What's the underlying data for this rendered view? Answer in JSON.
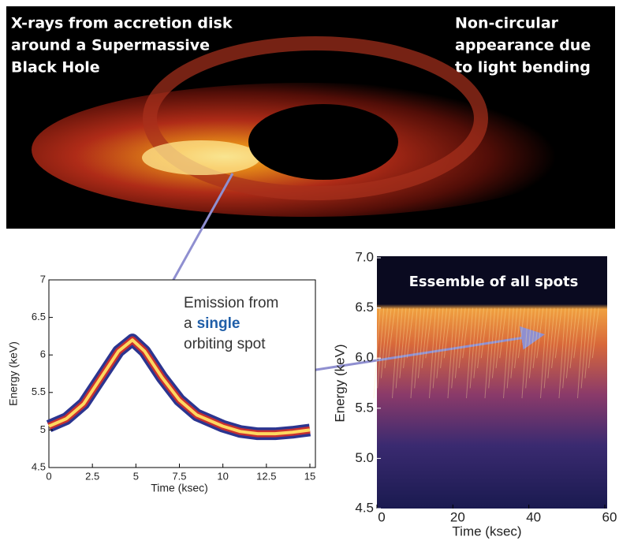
{
  "image": {
    "caption_left": [
      "X-rays from accretion disk",
      "around a Supermassive",
      "Black Hole"
    ],
    "caption_right": [
      "Non-circular",
      "appearance due",
      "to light bending"
    ]
  },
  "chart_data": [
    {
      "type": "line",
      "xlabel": "Time (ksec)",
      "ylabel": "Energy (keV)",
      "annotation": [
        "Emission from",
        "a",
        "single",
        "orbiting spot"
      ],
      "x": [
        0,
        1,
        2,
        3,
        4,
        4.8,
        5.5,
        6.5,
        7.5,
        8.5,
        10,
        11,
        12,
        13,
        14,
        15
      ],
      "series": [
        {
          "name": "orbiting spot",
          "color": "#2b3590",
          "values": [
            5.05,
            5.15,
            5.35,
            5.7,
            6.05,
            6.2,
            6.05,
            5.7,
            5.4,
            5.2,
            5.05,
            4.98,
            4.95,
            4.95,
            4.97,
            5.0
          ]
        }
      ],
      "xlim": [
        0,
        15
      ],
      "xticks": [
        0,
        2.5,
        5,
        7.5,
        10,
        12.5,
        15
      ],
      "ylim": [
        4.5,
        7
      ],
      "yticks": [
        4.5,
        5,
        5.5,
        6,
        6.5,
        7
      ]
    },
    {
      "type": "heatmap",
      "title": "Essemble of all spots",
      "xlabel": "Time (ksec)",
      "ylabel": "Energy (keV)",
      "xlim": [
        0,
        60
      ],
      "xticks": [
        0,
        20,
        40,
        60
      ],
      "ylim": [
        4.5,
        7.0
      ],
      "yticks": [
        {
          "value": 4.5,
          "label": "4.5"
        },
        {
          "value": 5,
          "label": "5.0"
        },
        {
          "value": 5.5,
          "label": "5.5"
        },
        {
          "value": 6,
          "label": "6.0"
        },
        {
          "value": 6.5,
          "label": "6.5"
        },
        {
          "value": 7,
          "label": "7.0"
        }
      ]
    }
  ]
}
